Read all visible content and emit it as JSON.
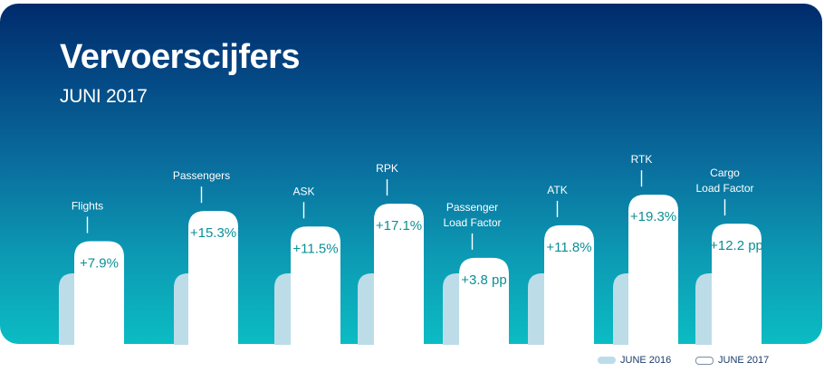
{
  "header": {
    "title": "Vervoerscijfers",
    "subtitle": "JUNI 2017"
  },
  "legend": {
    "june2016": "JUNE 2016",
    "june2017": "JUNE 2017"
  },
  "colors": {
    "background_top": "#002b6b",
    "background_bottom": "#0bbcc3",
    "june2016_bar": "#bcdce8",
    "june2017_bar": "#ffffff",
    "value_text": "#0b8f96"
  },
  "chart_data": {
    "type": "bar",
    "title": "Vervoerscijfers",
    "subtitle": "JUNI 2017",
    "categories": [
      {
        "label": [
          "Flights"
        ],
        "change": "+7.9%"
      },
      {
        "label": [
          "Passengers"
        ],
        "change": "+15.3%"
      },
      {
        "label": [
          "ASK"
        ],
        "change": "+11.5%"
      },
      {
        "label": [
          "RPK"
        ],
        "change": "+17.1%"
      },
      {
        "label": [
          "Passenger",
          "Load Factor"
        ],
        "change": "+3.8 pp"
      },
      {
        "label": [
          "ATK"
        ],
        "change": "+11.8%"
      },
      {
        "label": [
          "RTK"
        ],
        "change": "+19.3%"
      },
      {
        "label": [
          "Cargo",
          "Load Factor"
        ],
        "change": "+12.2 pp"
      }
    ],
    "series": [
      {
        "name": "JUNE 2016",
        "values": [
          100,
          100,
          100,
          100,
          100,
          100,
          100,
          100
        ]
      },
      {
        "name": "JUNE 2017",
        "values": [
          107.9,
          115.3,
          111.5,
          117.1,
          103.8,
          111.8,
          119.3,
          112.2
        ]
      }
    ],
    "legend_position": "bottom-right"
  }
}
